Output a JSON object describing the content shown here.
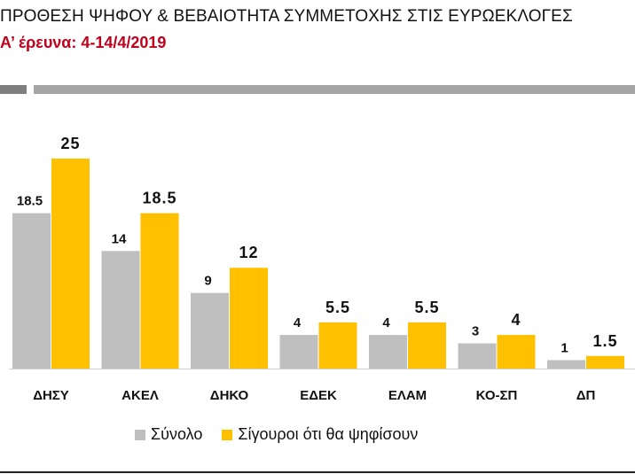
{
  "header": {
    "title": "ΠΡΟΘΕΣΗ ΨΗΦΟΥ & ΒΕΒΑΙΟΤΗΤΑ ΣΥΜΜΕΤΟΧΗΣ ΣΤΙΣ ΕΥΡΩΕΚΛΟΓΕΣ",
    "subtitle": "Α’ έρευνα: 4-14/4/2019"
  },
  "colors": {
    "series_total": "#bfbfbf",
    "series_sure": "#ffc000",
    "subtitle": "#c0001d"
  },
  "chart_data": {
    "type": "bar",
    "title": "ΠΡΟΘΕΣΗ ΨΗΦΟΥ & ΒΕΒΑΙΟΤΗΤΑ ΣΥΜΜΕΤΟΧΗΣ ΣΤΙΣ ΕΥΡΩΕΚΛΟΓΕΣ",
    "subtitle": "Α’ έρευνα: 4-14/4/2019",
    "categories": [
      "ΔΗΣΥ",
      "ΑΚΕΛ",
      "ΔΗΚΟ",
      "ΕΔΕΚ",
      "ΕΛΑΜ",
      "ΚΟ-ΣΠ",
      "ΔΠ"
    ],
    "series": [
      {
        "name": "Σύνολο",
        "values": [
          18.5,
          14,
          9,
          4,
          4,
          3,
          1
        ],
        "labels": [
          "18.5",
          "14",
          "9",
          "4",
          "4",
          "3",
          "1"
        ]
      },
      {
        "name": "Σίγουροι ότι θα ψηφίσουν",
        "values": [
          25,
          18.5,
          12,
          5.5,
          5.5,
          4,
          1.5
        ],
        "labels": [
          "25",
          "18.5",
          "12",
          "5.5",
          "5.5",
          "4",
          "1.5"
        ]
      }
    ],
    "ylim": [
      0,
      25
    ],
    "grid": false,
    "legend_position": "bottom"
  }
}
